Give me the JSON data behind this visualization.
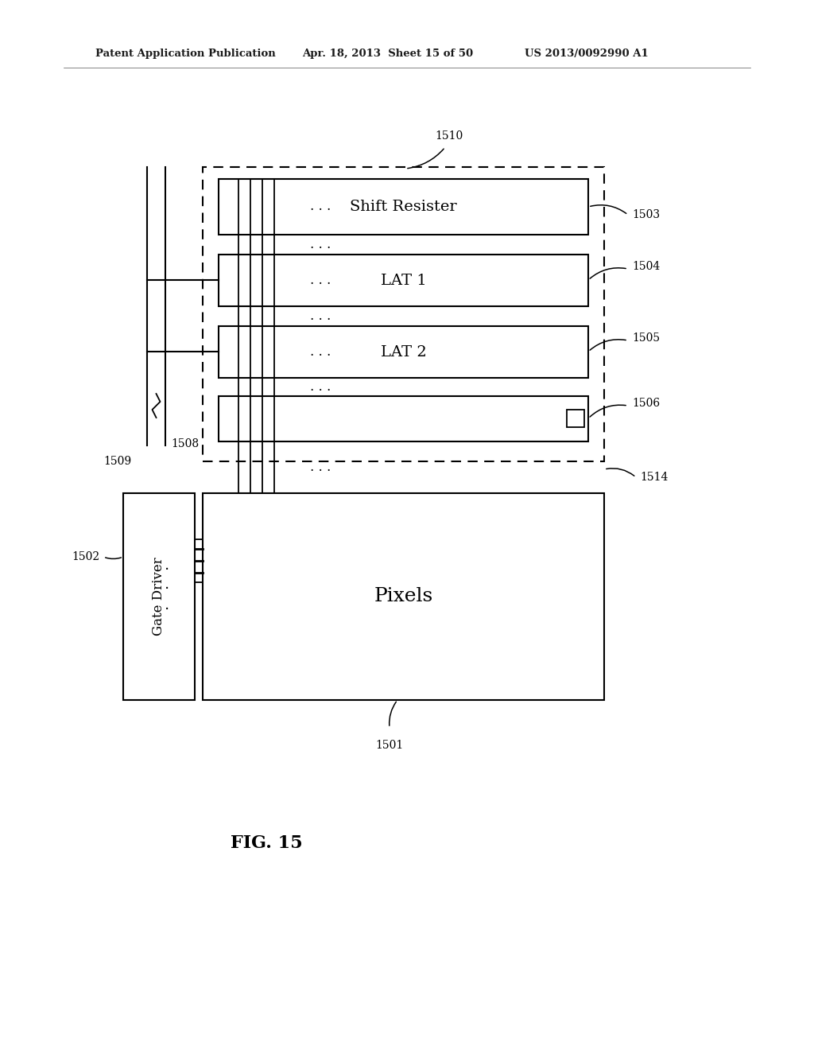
{
  "bg_color": "#ffffff",
  "header_text": "Patent Application Publication",
  "header_date": "Apr. 18, 2013  Sheet 15 of 50",
  "header_patent": "US 2013/0092990 A1",
  "fig_label": "FIG. 15",
  "block_labels": {
    "shift_resister": "Shift Resister",
    "lat1": "LAT 1",
    "lat2": "LAT 2",
    "pixels": "Pixels",
    "gate_driver": "Gate Driver"
  },
  "ref_numbers": {
    "1501": "1501",
    "1502": "1502",
    "1503": "1503",
    "1504": "1504",
    "1505": "1505",
    "1506": "1506",
    "1508": "1508",
    "1509": "1509",
    "1510": "1510",
    "1514": "1514"
  },
  "dots": ". . ."
}
